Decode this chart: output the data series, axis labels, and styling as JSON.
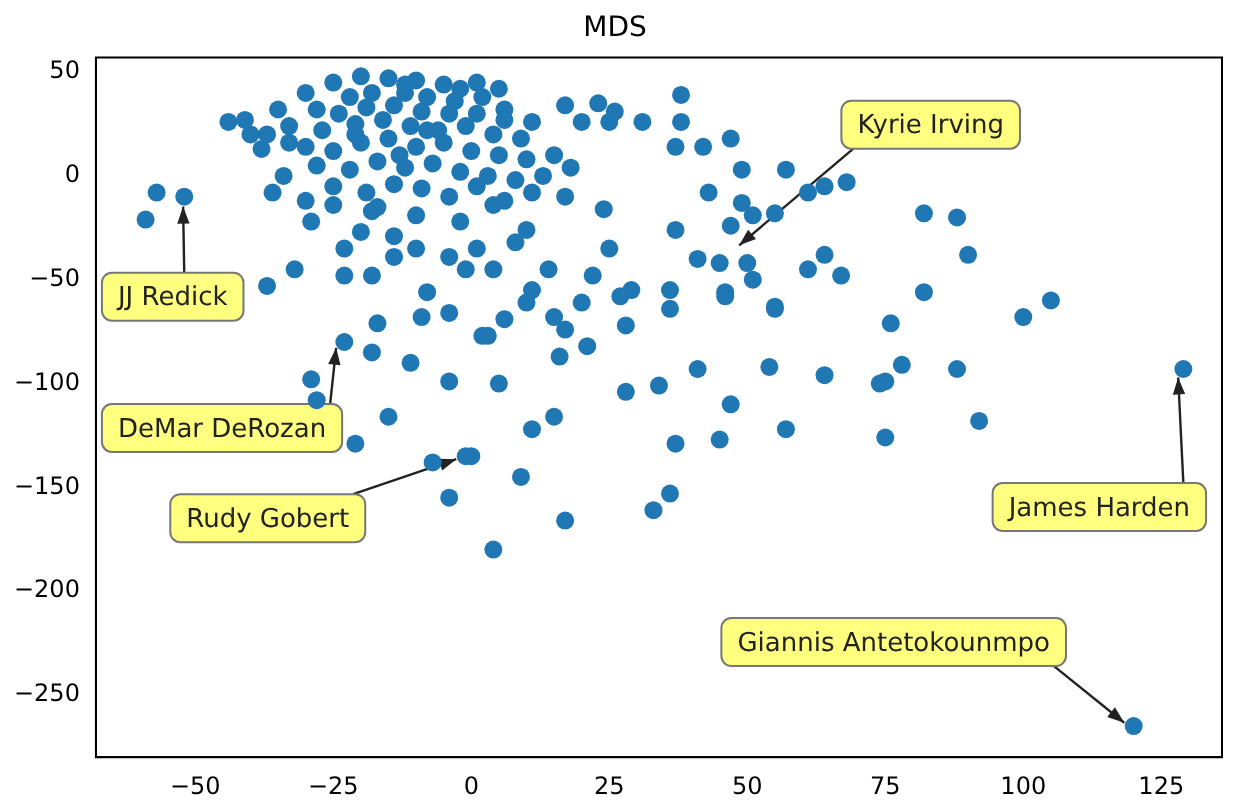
{
  "chart_data": {
    "type": "scatter",
    "title": "MDS",
    "marker": "circle",
    "grid": false,
    "legend": false,
    "xlim": [
      -68,
      136
    ],
    "ylim": [
      -280,
      57
    ],
    "xticks": [
      -50,
      -25,
      0,
      25,
      50,
      75,
      100,
      125
    ],
    "yticks": [
      -250,
      -200,
      -150,
      -100,
      -50,
      0,
      50
    ],
    "series": [
      {
        "color": "#1f77b4",
        "x": [
          -44,
          -41,
          -57,
          -52,
          -59,
          -38,
          -36,
          -34,
          -37,
          -33,
          -29,
          -23,
          -18,
          -23,
          -32,
          -37,
          -20,
          -14,
          -10,
          -8,
          -4,
          -1,
          -14,
          -10,
          -18,
          -25,
          -2,
          1,
          1,
          5,
          17,
          23,
          26,
          31,
          38,
          38,
          42,
          47,
          37,
          49,
          57,
          61,
          64,
          68,
          43,
          49,
          55,
          47,
          51,
          37,
          41,
          45,
          50,
          51,
          46,
          36,
          61,
          64,
          67,
          55,
          24,
          25,
          22,
          29,
          14,
          10,
          4,
          11,
          25,
          11,
          6,
          20,
          4,
          17,
          8,
          82,
          88,
          90,
          82,
          105,
          100,
          76,
          78,
          75,
          88,
          92,
          75,
          129,
          -17,
          -9,
          -4,
          2,
          -23,
          -18,
          -11,
          -4,
          -29,
          -28,
          -15,
          -21,
          -7,
          -1,
          -4,
          10,
          15,
          17,
          20,
          27,
          36,
          46,
          55,
          6,
          3,
          28,
          21,
          16,
          5,
          28,
          34,
          41,
          54,
          64,
          74,
          47,
          11,
          15,
          37,
          45,
          57,
          0,
          9,
          36,
          33,
          17,
          4,
          120,
          -30,
          -25,
          -20,
          -15,
          -10,
          -5,
          -22,
          -18,
          -12,
          -8,
          -3,
          2,
          -28,
          -24,
          -19,
          -14,
          -9,
          -4,
          1,
          6,
          -33,
          -27,
          -21,
          -16,
          -11,
          -6,
          -1,
          4,
          9,
          -30,
          -25,
          -20,
          -15,
          -10,
          -5,
          0,
          5,
          10,
          -28,
          -22,
          -17,
          -12,
          -7,
          -2,
          3,
          8,
          13,
          -25,
          -19,
          -14,
          -9,
          -4,
          1,
          6,
          11,
          -21,
          -13,
          -8,
          -17,
          -30,
          15,
          18,
          -12,
          -2,
          -35,
          -40
        ],
        "values": [
          26,
          27,
          -8,
          -10,
          -21,
          13,
          -8,
          0,
          20,
          16,
          -22,
          -35,
          -48,
          -48,
          -45,
          -53,
          -27,
          -39,
          -35,
          -56,
          -39,
          -45,
          -29,
          -19,
          -17,
          -14,
          -22,
          -35,
          45,
          42,
          34,
          35,
          31,
          26,
          39,
          26,
          14,
          18,
          14,
          3,
          3,
          -8,
          -5,
          -3,
          -8,
          -13,
          -18,
          -24,
          -19,
          -26,
          -40,
          -42,
          -42,
          -50,
          -56,
          -55,
          -45,
          -38,
          -48,
          -63,
          -16,
          -35,
          -48,
          -55,
          -45,
          -26,
          -45,
          -55,
          26,
          26,
          32,
          26,
          -14,
          -10,
          -32,
          -18,
          -20,
          -38,
          -56,
          -60,
          -68,
          -71,
          -91,
          -99,
          -93,
          -118,
          -126,
          -93,
          -71,
          -68,
          -66,
          -77,
          -80,
          -85,
          -90,
          -99,
          -98,
          -108,
          -116,
          -129,
          -138,
          -135,
          -155,
          -61,
          -68,
          -74,
          -61,
          -58,
          -64,
          -58,
          -64,
          -69,
          -77,
          -72,
          -82,
          -87,
          -100,
          -104,
          -101,
          -93,
          -92,
          -96,
          -100,
          -110,
          -122,
          -116,
          -129,
          -127,
          -122,
          -135,
          -145,
          -153,
          -161,
          -166,
          -180,
          -265,
          40,
          45,
          48,
          47,
          46,
          44,
          38,
          40,
          40,
          38,
          36,
          38,
          32,
          30,
          33,
          34,
          31,
          30,
          30,
          27,
          24,
          22,
          25,
          27,
          24,
          22,
          24,
          20,
          18,
          14,
          12,
          16,
          18,
          14,
          16,
          12,
          10,
          8,
          5,
          3,
          7,
          4,
          6,
          2,
          0,
          -2,
          0,
          -5,
          -8,
          -4,
          -6,
          -10,
          -5,
          -12,
          -8,
          20,
          10,
          22,
          -15,
          -12,
          10,
          4,
          44,
          42,
          32,
          20
        ]
      }
    ],
    "annotations": [
      {
        "text": "JJ Redick",
        "x": -52,
        "y": -10
      },
      {
        "text": "Kyrie Irving",
        "x": 47,
        "y": -36
      },
      {
        "text": "DeMar DeRozan",
        "x": -23,
        "y": -80
      },
      {
        "text": "James Harden",
        "x": 129,
        "y": -93
      },
      {
        "text": "Rudy Gobert",
        "x": -1,
        "y": -135
      },
      {
        "text": "Giannis Antetokounmpo",
        "x": 120,
        "y": -265
      }
    ]
  }
}
